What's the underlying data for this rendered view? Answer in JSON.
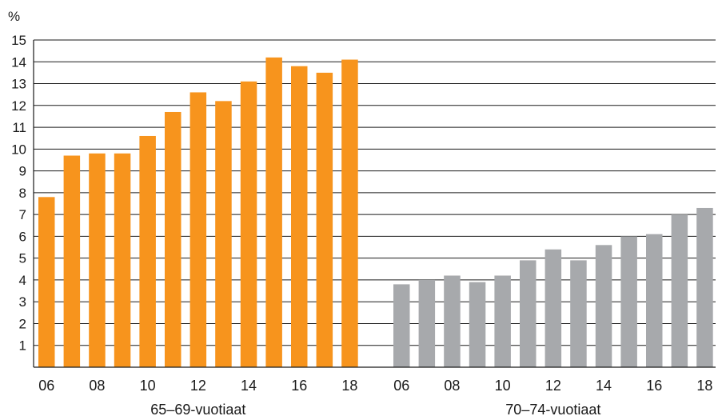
{
  "chart_data": {
    "type": "bar",
    "ylabel": "%",
    "ylim": [
      0,
      15
    ],
    "yticks": [
      1,
      2,
      3,
      4,
      5,
      6,
      7,
      8,
      9,
      10,
      11,
      12,
      13,
      14,
      15
    ],
    "grid": true,
    "categories": [
      "06",
      "07",
      "08",
      "09",
      "10",
      "11",
      "12",
      "13",
      "14",
      "15",
      "16",
      "17",
      "18"
    ],
    "xtick_labels": [
      "06",
      "",
      "08",
      "",
      "10",
      "",
      "12",
      "",
      "14",
      "",
      "16",
      "",
      "18"
    ],
    "groups": [
      {
        "name": "65–69-vuotiaat",
        "color": "#f7941d",
        "values": [
          7.8,
          9.7,
          9.8,
          9.8,
          10.6,
          11.7,
          12.6,
          12.2,
          13.1,
          14.2,
          13.8,
          13.5,
          14.1
        ]
      },
      {
        "name": "70–74-vuotiaat",
        "color": "#a7a9ac",
        "values": [
          3.8,
          4.0,
          4.2,
          3.9,
          4.2,
          4.9,
          5.4,
          4.9,
          5.6,
          6.0,
          6.1,
          7.0,
          7.3
        ]
      }
    ]
  }
}
